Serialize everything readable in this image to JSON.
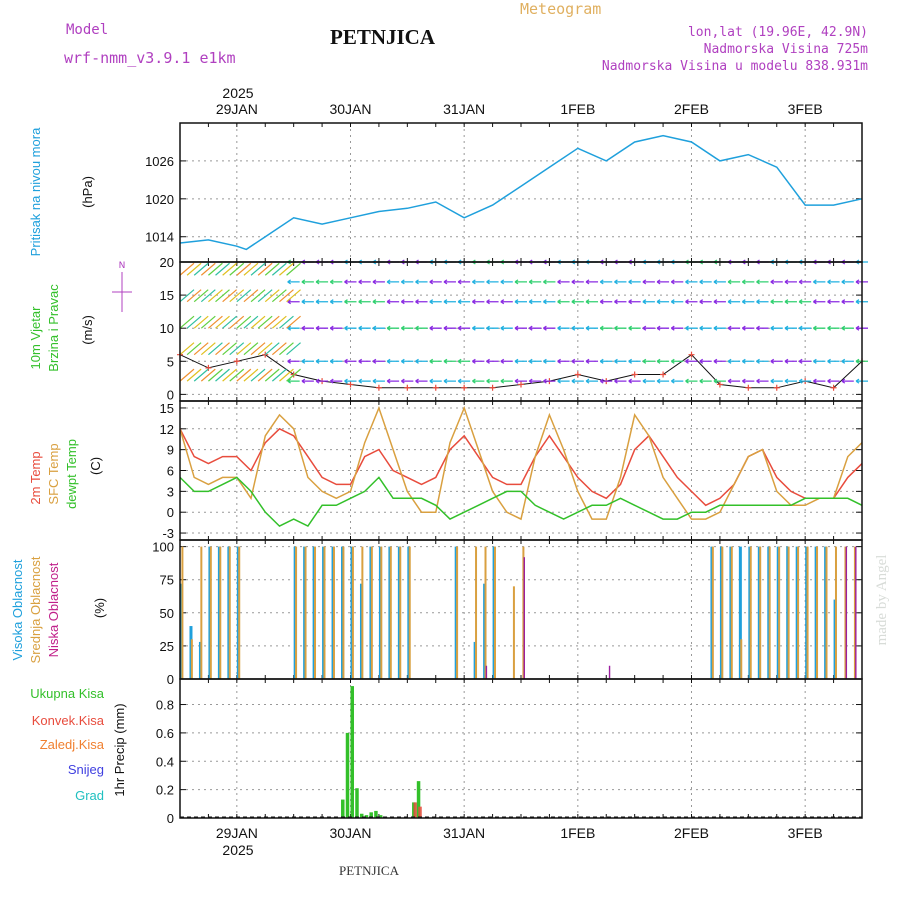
{
  "header": {
    "model_label": "Model",
    "model_name": "wrf-nmm_v3.9.1  e1km",
    "station": "PETNJICA",
    "title": "Meteogram",
    "lonlat": "lon,lat (19.96E, 42.9N)",
    "elevation": "Nadmorska Visina 725m",
    "model_elevation": "Nadmorska Visina u modelu 838.931m",
    "watermark": "made by Angel",
    "footer_station": "PETNJICA"
  },
  "colors": {
    "pressure": "#1fa0dc",
    "temp2m": "#e84c3d",
    "sfc": "#d9a040",
    "dewpt": "#33c02a",
    "high_cloud": "#1fa0dc",
    "mid_cloud": "#d9a040",
    "low_cloud": "#9b1fa0",
    "total_precip": "#33c02a",
    "conv_precip": "#e84c3d",
    "frozen_precip": "#f08030",
    "snow": "#4040e0",
    "hail": "#20c0c0",
    "wind_speed_marker": "#e84c3d",
    "header_purple": "#b040c0",
    "header_gold": "#e0b060"
  },
  "time_axis": {
    "year": "2025",
    "days": [
      "29JAN",
      "30JAN",
      "31JAN",
      "1FEB",
      "2FEB",
      "3FEB"
    ],
    "start_hours_before_first_day": 12,
    "total_hours": 144
  },
  "chart_data": [
    {
      "type": "line",
      "panel": "pressure",
      "ylabel": "Pritisak na nivou mora",
      "unit": "(hPa)",
      "ylim": [
        1010,
        1032
      ],
      "yticks": [
        1014,
        1020,
        1026
      ],
      "x_hours": [
        0,
        6,
        12,
        14,
        18,
        24,
        30,
        36,
        42,
        48,
        54,
        60,
        66,
        72,
        78,
        84,
        90,
        96,
        102,
        108,
        114,
        120,
        126,
        132,
        138,
        144
      ],
      "series": [
        {
          "values": [
            1013,
            1013.5,
            1012.5,
            1012,
            1014,
            1017,
            1016,
            1017,
            1018,
            1018.5,
            1019.5,
            1017,
            1019,
            1022,
            1025,
            1028,
            1026,
            1029,
            1030,
            1029,
            1026,
            1027,
            1025,
            1019,
            1019,
            1020
          ]
        }
      ]
    },
    {
      "type": "scatter",
      "panel": "wind",
      "ylabel_1": "10m Vjetar",
      "ylabel_2": "Brzina i Pravac",
      "unit": "(m/s)",
      "compass": "N",
      "ylim": [
        -1,
        20
      ],
      "yticks": [
        0,
        5,
        10,
        15,
        20
      ],
      "x_hours": [
        0,
        6,
        12,
        18,
        24,
        30,
        36,
        42,
        48,
        54,
        60,
        66,
        72,
        78,
        84,
        90,
        96,
        102,
        108,
        114,
        120,
        126,
        132,
        138,
        144
      ],
      "speed": [
        6,
        4,
        5,
        6,
        3,
        2,
        1.5,
        1,
        1,
        1,
        1,
        1,
        1.5,
        2,
        3,
        2,
        3,
        3,
        6,
        1.5,
        1,
        1,
        2,
        1,
        5
      ]
    },
    {
      "type": "line",
      "panel": "temperature",
      "ylabel_temp": "2m Temp",
      "ylabel_sfc": "SFC Temp",
      "ylabel_dew": "dewpt Temp",
      "unit": "(C)",
      "ylim": [
        -4,
        16
      ],
      "yticks": [
        -3,
        0,
        3,
        6,
        9,
        12,
        15
      ],
      "x_hours": [
        0,
        3,
        6,
        9,
        12,
        15,
        18,
        21,
        24,
        27,
        30,
        33,
        36,
        39,
        42,
        45,
        48,
        51,
        54,
        57,
        60,
        63,
        66,
        69,
        72,
        75,
        78,
        81,
        84,
        87,
        90,
        93,
        96,
        99,
        102,
        105,
        108,
        111,
        114,
        117,
        120,
        123,
        126,
        129,
        132,
        135,
        138,
        141,
        144
      ],
      "series": [
        {
          "name": "2m Temp",
          "values": [
            12,
            8,
            7,
            8,
            8,
            6,
            10,
            12,
            11,
            8,
            5,
            4,
            4,
            8,
            9,
            6,
            5,
            4,
            5,
            9,
            11,
            8,
            5,
            4,
            4,
            8,
            11,
            8,
            5,
            3,
            2,
            4,
            9,
            11,
            8,
            5,
            3,
            1,
            2,
            4,
            8,
            9,
            5,
            3,
            2,
            2,
            2,
            5,
            7
          ]
        },
        {
          "name": "SFC Temp",
          "values": [
            12,
            5,
            4,
            5,
            5,
            2,
            11,
            14,
            12,
            5,
            3,
            2,
            3,
            10,
            15,
            9,
            3,
            0,
            0,
            10,
            15,
            9,
            3,
            0,
            -1,
            8,
            14,
            9,
            3,
            -1,
            -1,
            5,
            14,
            11,
            5,
            2,
            -1,
            -1,
            0,
            4,
            8,
            9,
            3,
            1,
            1,
            2,
            2,
            8,
            10
          ]
        },
        {
          "name": "dewpt Temp",
          "values": [
            5,
            3,
            3,
            4,
            5,
            3,
            0,
            -2,
            -1,
            -2,
            1,
            1,
            2,
            3,
            5,
            2,
            2,
            2,
            1,
            -1,
            0,
            1,
            2,
            3,
            3,
            1,
            0,
            -1,
            0,
            1,
            1,
            2,
            1,
            0,
            -1,
            -1,
            0,
            0,
            1,
            1,
            1,
            1,
            1,
            1,
            2,
            2,
            2,
            2,
            1
          ]
        }
      ]
    },
    {
      "type": "bar",
      "panel": "clouds",
      "ylabel_high": "Visoka Oblacnost",
      "ylabel_mid": "Srednja Oblacnost",
      "ylabel_low": "Niska Oblacnost",
      "unit": "(%)",
      "ylim": [
        0,
        105
      ],
      "yticks": [
        0,
        25,
        50,
        75,
        100
      ],
      "x_start_hours": [
        0,
        2,
        4,
        6,
        8,
        10,
        12,
        24,
        26,
        28,
        30,
        32,
        34,
        36,
        38,
        40,
        42,
        44,
        46,
        48,
        58,
        62,
        64,
        66,
        70,
        72,
        90,
        94,
        112,
        114,
        116,
        118,
        120,
        122,
        124,
        126,
        128,
        130,
        132,
        134,
        136,
        138,
        140,
        142
      ],
      "series": [
        {
          "name": "Visoka Oblacnost",
          "values": [
            72,
            40,
            28,
            100,
            100,
            100,
            100,
            100,
            100,
            100,
            100,
            100,
            100,
            100,
            72,
            100,
            100,
            100,
            100,
            100,
            100,
            28,
            72,
            100,
            0,
            0,
            0,
            0,
            100,
            100,
            100,
            100,
            100,
            100,
            100,
            100,
            100,
            100,
            100,
            100,
            100,
            60,
            0,
            0
          ]
        },
        {
          "name": "Srednja Oblacnost",
          "values": [
            100,
            30,
            100,
            100,
            100,
            100,
            100,
            100,
            100,
            100,
            100,
            100,
            100,
            100,
            100,
            100,
            100,
            100,
            100,
            100,
            100,
            100,
            100,
            100,
            70,
            100,
            0,
            0,
            100,
            100,
            100,
            30,
            100,
            100,
            100,
            100,
            100,
            100,
            100,
            100,
            100,
            100,
            100,
            100
          ]
        },
        {
          "name": "Niska Oblacnost",
          "values": [
            0,
            0,
            0,
            0,
            0,
            0,
            0,
            0,
            0,
            0,
            0,
            0,
            0,
            0,
            0,
            0,
            0,
            0,
            0,
            0,
            0,
            0,
            10,
            0,
            0,
            92,
            10,
            0,
            0,
            0,
            0,
            0,
            0,
            0,
            0,
            0,
            0,
            0,
            0,
            0,
            0,
            0,
            100,
            100
          ]
        }
      ]
    },
    {
      "type": "bar",
      "panel": "precip",
      "ylabel": "1hr Precip (mm)",
      "legend": [
        "Ukupna Kisa",
        "Konvek.Kisa",
        "Zaledj.Kisa",
        "Snijeg",
        "Grad"
      ],
      "ylim": [
        0,
        0.98
      ],
      "yticks": [
        0,
        0.2,
        0.4,
        0.6,
        0.8
      ],
      "ytick_labels": [
        "0",
        "0.2",
        "0.4",
        "0.6",
        "0.8"
      ],
      "x_hours": [
        34,
        35,
        36,
        37,
        38,
        39,
        40,
        41,
        42,
        43,
        49,
        50
      ],
      "series": [
        {
          "name": "Ukupna Kisa",
          "values": [
            0.13,
            0.6,
            0.93,
            0.21,
            0.03,
            0.02,
            0.04,
            0.05,
            0.02,
            0.01,
            0.11,
            0.26
          ]
        },
        {
          "name": "Konvek.Kisa",
          "values": [
            0,
            0,
            0,
            0,
            0,
            0,
            0,
            0,
            0,
            0,
            0.11,
            0.08
          ]
        }
      ]
    }
  ]
}
